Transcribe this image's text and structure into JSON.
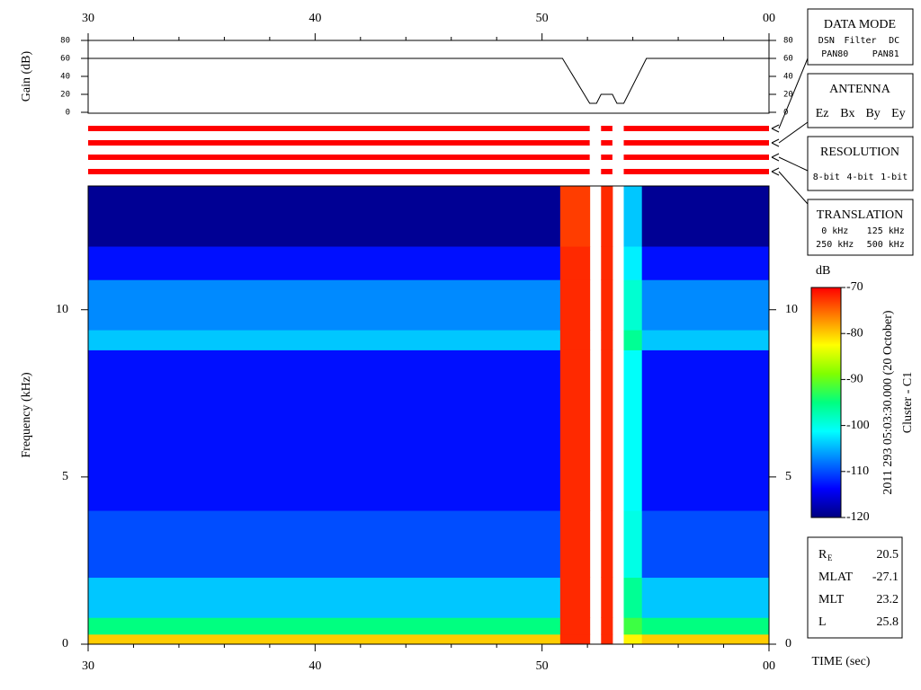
{
  "chart_data": [
    {
      "type": "line",
      "ylabel": "Gain (dB)",
      "xlim": [
        30,
        60
      ],
      "ylim": [
        0,
        80
      ],
      "yticks": [
        0,
        20,
        40,
        60,
        80
      ],
      "xticks": [
        30,
        40,
        50,
        {
          "value": 60,
          "label": "00"
        }
      ],
      "xticks_minor": [
        32,
        34,
        36,
        38,
        42,
        44,
        46,
        48,
        52,
        54,
        56,
        58
      ],
      "x": [
        30,
        50.9,
        52.1,
        52.4,
        52.6,
        53.1,
        53.3,
        53.6,
        54.6,
        60
      ],
      "values": [
        60,
        60,
        10,
        10,
        20,
        20,
        10,
        10,
        60,
        60
      ],
      "color": "#000000"
    },
    {
      "type": "status",
      "xlim": [
        30,
        60
      ],
      "series": [
        {
          "color": "#ff0000",
          "segments": [
            [
              30,
              52.1
            ],
            [
              52.6,
              53.1
            ],
            [
              53.6,
              60
            ]
          ]
        },
        {
          "color": "#ff0000",
          "segments": [
            [
              30,
              52.1
            ],
            [
              52.6,
              53.1
            ],
            [
              53.6,
              60
            ]
          ]
        },
        {
          "color": "#ff0000",
          "segments": [
            [
              30,
              52.1
            ],
            [
              52.6,
              53.1
            ],
            [
              53.6,
              60
            ]
          ]
        },
        {
          "color": "#ff0000",
          "segments": [
            [
              30,
              52.1
            ],
            [
              52.6,
              53.1
            ],
            [
              53.6,
              60
            ]
          ]
        }
      ]
    },
    {
      "type": "heatmap",
      "xlabel": "TIME (sec)",
      "ylabel": "Frequency (kHz)",
      "xlim": [
        30,
        60
      ],
      "ylim": [
        0,
        13.7
      ],
      "xticks": [
        30,
        40,
        50,
        {
          "value": 60,
          "label": "00"
        }
      ],
      "xticks_minor": [
        32,
        34,
        36,
        38,
        42,
        44,
        46,
        48,
        52,
        54,
        56,
        58
      ],
      "yticks": [
        0,
        5,
        10
      ],
      "x_edges": [
        30,
        50.8,
        52.1,
        52.6,
        53.1,
        53.6,
        54.4,
        60
      ],
      "y_edges": [
        0,
        0.3,
        0.8,
        2,
        4,
        8.8,
        9.4,
        10.9,
        11.9,
        13.7
      ],
      "values": [
        [
          -80,
          -95,
          -104,
          -110,
          -113,
          -104,
          -107,
          -113,
          -119
        ],
        [
          -72,
          -72,
          -72,
          -72,
          -72,
          -72,
          -72,
          -72,
          -73
        ],
        [
          null,
          null,
          null,
          null,
          null,
          null,
          null,
          null,
          null
        ],
        [
          -72,
          -72,
          -72,
          -72,
          -72,
          -72,
          -72,
          -72,
          -72
        ],
        [
          null,
          null,
          null,
          null,
          null,
          null,
          null,
          null,
          null
        ],
        [
          -82,
          -92,
          -96,
          -100,
          -101,
          -96,
          -99,
          -102,
          -104
        ],
        [
          -80,
          -95,
          -104,
          -110,
          -113,
          -104,
          -107,
          -113,
          -119
        ]
      ],
      "colormap": [
        "#000080",
        "#0000ff",
        "#0080ff",
        "#00ffff",
        "#00ff80",
        "#80ff00",
        "#ffff00",
        "#ff8000",
        "#ff0000"
      ],
      "colorbar": {
        "title": "dB",
        "clim": [
          -120,
          -70
        ],
        "ticks": [
          -70,
          -80,
          -90,
          -100,
          -110,
          -120
        ]
      },
      "side_text": [
        "2011 293 05:03:30.000 (20 October)",
        "Cluster - C1"
      ]
    }
  ],
  "panels": [
    {
      "title": "DATA MODE",
      "rows": [
        [
          "DSN",
          "Filter",
          "DC"
        ],
        [
          "PAN80",
          "PAN81"
        ]
      ],
      "colors": [
        [
          "#ff0000",
          "#00c000",
          "#0000ff"
        ],
        [
          "#000000",
          "#00c0c0"
        ]
      ]
    },
    {
      "title": "ANTENNA",
      "rows": [
        [
          "Ez",
          "Bx",
          "By",
          "Ey"
        ]
      ],
      "colors": [
        [
          "#ff0000",
          "#00c000",
          "#0000ff",
          "#000000"
        ]
      ]
    },
    {
      "title": "RESOLUTION",
      "rows": [
        [
          "8-bit",
          "4-bit",
          "1-bit"
        ]
      ],
      "colors": [
        [
          "#ff0000",
          "#00c000",
          "#0000ff"
        ]
      ]
    },
    {
      "title": "TRANSLATION",
      "rows": [
        [
          "0 kHz",
          "125 kHz"
        ],
        [
          "250 kHz",
          "500 kHz"
        ]
      ],
      "colors": [
        [
          "#ff0000",
          "#00c000"
        ],
        [
          "#0000ff",
          "#000000"
        ]
      ]
    }
  ],
  "orbit": [
    {
      "label": "R",
      "sub": "E",
      "value": 20.5
    },
    {
      "label": "MLAT",
      "value": -27.1
    },
    {
      "label": "MLT",
      "value": 23.2
    },
    {
      "label": "L",
      "value": 25.8
    }
  ]
}
